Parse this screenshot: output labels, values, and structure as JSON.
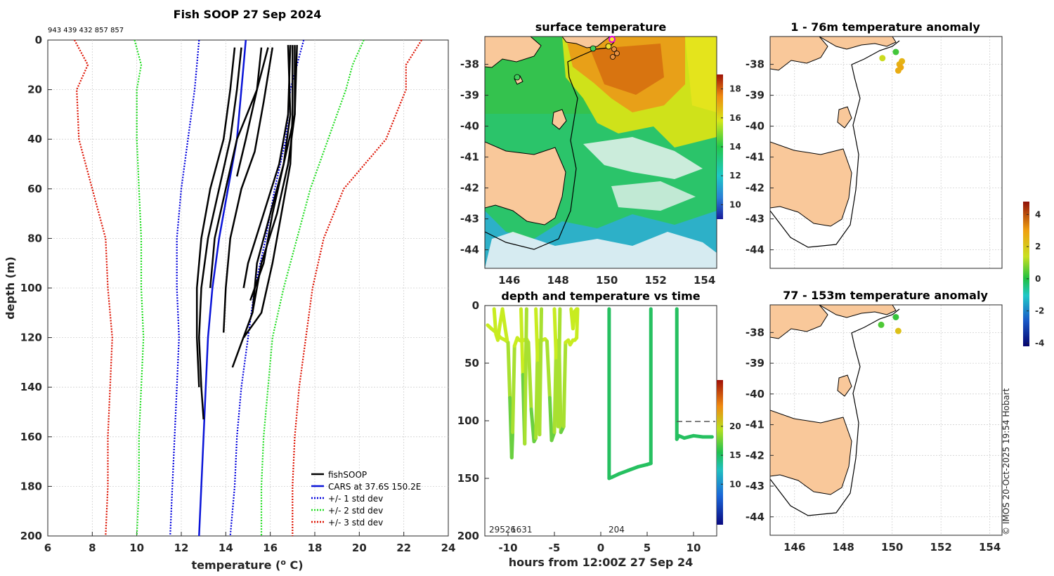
{
  "copyright": "© IMOS 20-Oct-2025 19:54 Hobart",
  "colors": {
    "fishsoop": "#000000",
    "cars": "#0a14d8",
    "std1": "#0000dd",
    "std2": "#22dd22",
    "std3": "#dd1100",
    "land": "#f9c89a",
    "highlight": "#e000e0"
  },
  "chart_data": [
    {
      "id": "profile",
      "type": "line",
      "title": "Fish SOOP 27 Sep 2024",
      "top_label": "943 439 432 857 857",
      "xlabel": "temperature (",
      "xlabel_sup": "o",
      "xlabel_tail": " C)",
      "ylabel": "depth (m)",
      "xlim": [
        6,
        24
      ],
      "ylim": [
        200,
        0
      ],
      "xticks": [
        "6",
        "8",
        "10",
        "12",
        "14",
        "16",
        "18",
        "20",
        "22",
        "24"
      ],
      "yticks": [
        "0",
        "20",
        "40",
        "60",
        "80",
        "100",
        "120",
        "140",
        "160",
        "180",
        "200"
      ],
      "legend": {
        "position": "bottom-right",
        "entries": [
          "fishSOOP",
          "CARS at 37.6S 150.2E",
          "+/- 1 std dev",
          "+/- 2 std dev",
          "+/- 3 std dev"
        ]
      },
      "depth": [
        0,
        10,
        20,
        40,
        60,
        80,
        100,
        120,
        140,
        160,
        180,
        200
      ],
      "series": [
        {
          "name": "CARS at 37.6S 150.2E",
          "temp": [
            14.9,
            14.8,
            14.7,
            14.5,
            14.1,
            13.7,
            13.4,
            13.2,
            13.1,
            13.0,
            12.9,
            12.8
          ]
        },
        {
          "name": "-1 std",
          "temp": [
            12.8,
            12.7,
            12.6,
            12.3,
            12.0,
            11.8,
            11.8,
            11.9,
            11.8,
            11.7,
            11.6,
            11.5
          ]
        },
        {
          "name": "+1 std",
          "temp": [
            17.5,
            17.2,
            16.9,
            16.7,
            16.2,
            15.8,
            15.3,
            15.0,
            14.7,
            14.5,
            14.4,
            14.2
          ]
        },
        {
          "name": "-2 std",
          "temp": [
            9.9,
            10.2,
            10.0,
            10.0,
            10.1,
            10.2,
            10.2,
            10.3,
            10.2,
            10.1,
            10.1,
            10.0
          ]
        },
        {
          "name": "+2 std",
          "temp": [
            20.2,
            19.7,
            19.4,
            18.6,
            17.8,
            17.2,
            16.6,
            16.1,
            15.9,
            15.7,
            15.6,
            15.6
          ]
        },
        {
          "name": "-3 std",
          "temp": [
            7.2,
            7.8,
            7.3,
            7.4,
            8.0,
            8.6,
            8.7,
            8.9,
            8.8,
            8.7,
            8.7,
            8.6
          ]
        },
        {
          "name": "+3 std",
          "temp": [
            22.8,
            22.1,
            22.1,
            21.2,
            19.3,
            18.4,
            17.9,
            17.6,
            17.3,
            17.1,
            17.0,
            17.0
          ]
        }
      ],
      "profiles": [
        {
          "d": [
            3,
            20,
            40,
            60,
            80,
            100,
            120,
            140,
            153
          ],
          "t": [
            14.7,
            14.5,
            14.2,
            13.7,
            13.2,
            12.9,
            12.8,
            12.9,
            13.0
          ]
        },
        {
          "d": [
            3,
            20,
            40,
            60,
            80,
            100,
            120,
            140
          ],
          "t": [
            14.4,
            14.2,
            13.9,
            13.3,
            12.9,
            12.7,
            12.7,
            12.8
          ]
        },
        {
          "d": [
            3,
            20,
            40,
            60,
            80,
            100
          ],
          "t": [
            15.6,
            15.4,
            14.5,
            14.0,
            13.5,
            13.3
          ]
        },
        {
          "d": [
            3,
            20,
            40,
            55
          ],
          "t": [
            15.9,
            15.4,
            14.9,
            14.5
          ]
        },
        {
          "d": [
            3,
            25,
            45,
            60,
            80,
            100,
            118
          ],
          "t": [
            16.1,
            15.7,
            15.3,
            14.7,
            14.2,
            14.0,
            13.9
          ]
        },
        {
          "d": [
            2,
            30,
            50,
            70,
            90,
            110,
            132
          ],
          "t": [
            17.1,
            17.1,
            16.8,
            16.3,
            15.6,
            15.2,
            14.3
          ]
        },
        {
          "d": [
            2,
            30,
            50,
            70,
            90,
            110,
            120
          ],
          "t": [
            17.0,
            17.0,
            16.9,
            16.5,
            16.1,
            15.6,
            14.8
          ]
        },
        {
          "d": [
            2,
            30,
            50,
            70,
            90,
            105
          ],
          "t": [
            16.8,
            16.9,
            16.6,
            16.1,
            15.7,
            15.1
          ]
        },
        {
          "d": [
            2,
            30,
            50,
            70,
            90,
            110
          ],
          "t": [
            17.2,
            17.1,
            16.6,
            16.0,
            15.4,
            15.2
          ]
        },
        {
          "d": [
            2,
            30,
            50,
            70,
            90,
            100
          ],
          "t": [
            16.9,
            16.8,
            16.4,
            15.7,
            15.0,
            14.8
          ]
        }
      ]
    },
    {
      "id": "sst",
      "type": "heatmap",
      "title": "surface temperature",
      "xticks": [
        "146",
        "148",
        "150",
        "152",
        "154"
      ],
      "yticks": [
        "-38",
        "-39",
        "-40",
        "-41",
        "-42",
        "-43",
        "-44"
      ],
      "xlim": [
        145,
        154.5
      ],
      "ylim": [
        -44.6,
        -37.1
      ],
      "colorbar": {
        "ticks": [
          "10",
          "12",
          "14",
          "16",
          "18"
        ],
        "range": [
          9,
          19
        ]
      }
    },
    {
      "id": "anom_shallow",
      "type": "scatter",
      "title": "1 - 76m temperature anomaly",
      "yticks": [
        "-38",
        "-39",
        "-40",
        "-41",
        "-42",
        "-43",
        "-44"
      ],
      "xlim": [
        145,
        154.5
      ],
      "ylim": [
        -44.6,
        -37.1
      ],
      "points": [
        {
          "lon": 149.6,
          "lat": -37.8,
          "anom": 1.5
        },
        {
          "lon": 150.15,
          "lat": -37.6,
          "anom": 0.3
        },
        {
          "lon": 150.4,
          "lat": -37.9,
          "anom": 2.5
        },
        {
          "lon": 150.3,
          "lat": -38.0,
          "anom": 2.6
        },
        {
          "lon": 150.35,
          "lat": -38.1,
          "anom": 2.8
        },
        {
          "lon": 150.25,
          "lat": -38.2,
          "anom": 2.7
        }
      ]
    },
    {
      "id": "anom_deep",
      "type": "scatter",
      "title": "77 - 153m temperature anomaly",
      "xticks": [
        "146",
        "148",
        "150",
        "152",
        "154"
      ],
      "yticks": [
        "-38",
        "-39",
        "-40",
        "-41",
        "-42",
        "-43",
        "-44"
      ],
      "xlim": [
        145,
        154.5
      ],
      "ylim": [
        -44.6,
        -37.1
      ],
      "points": [
        {
          "lon": 149.55,
          "lat": -37.75,
          "anom": 0.4
        },
        {
          "lon": 150.15,
          "lat": -37.5,
          "anom": 0.2
        },
        {
          "lon": 150.25,
          "lat": -37.95,
          "anom": 2.2
        }
      ]
    },
    {
      "id": "anom_colorbar",
      "type": "heatmap",
      "ticks": [
        "4",
        "2",
        "0",
        "-2",
        "-4"
      ],
      "range": [
        -4.2,
        4.8
      ]
    },
    {
      "id": "timeseries",
      "type": "scatter",
      "title": "depth and temperature vs time",
      "xlabel": "hours from 12:00Z 27 Sep 24",
      "xlim": [
        -12.5,
        12.5
      ],
      "ylim": [
        200,
        0
      ],
      "xticks": [
        "-10",
        "-5",
        "0",
        "5",
        "10"
      ],
      "yticks": [
        "0",
        "50",
        "100",
        "150",
        "200"
      ],
      "annotations": [
        "29526",
        "1631",
        "204"
      ],
      "colorbar": {
        "ticks": [
          "10",
          "15",
          "20"
        ],
        "range": [
          3,
          28
        ]
      },
      "reference_depth": 100,
      "tracks": [
        {
          "t": [
            -12.2,
            -11.8,
            -11.2,
            -10.8,
            -10.3,
            -10.0,
            -9.8,
            -9.6,
            -9.5,
            -9.3,
            -9.0,
            -8.8,
            -8.5,
            -8.3,
            -8.0,
            -7.8,
            -7.5,
            -7.2,
            -7.0,
            -6.8,
            -6.5,
            -6.3,
            -6.0,
            -5.8,
            -5.5,
            -5.3,
            -5.0,
            -4.8,
            -4.5,
            -4.3,
            -4.0,
            -3.8,
            -3.5,
            -3.3,
            -3.0,
            -2.8,
            -2.6,
            -2.5
          ],
          "d": [
            17,
            20,
            24,
            28,
            30,
            32,
            80,
            132,
            110,
            35,
            28,
            30,
            31,
            30,
            29,
            32,
            90,
            118,
            115,
            30,
            31,
            30,
            29,
            31,
            80,
            117,
            110,
            31,
            30,
            110,
            105,
            32,
            30,
            34,
            30,
            30,
            28,
            3
          ]
        },
        {
          "t": [
            -11.5,
            -11.3,
            -11.1,
            -10.9,
            -10.6,
            -10.3,
            -10.1
          ],
          "d": [
            3,
            25,
            30,
            18,
            3,
            20,
            30
          ]
        },
        {
          "t": [
            -8.6,
            -8.4,
            -8.2,
            -8.0
          ],
          "d": [
            3,
            60,
            120,
            3
          ]
        },
        {
          "t": [
            -7.0,
            -6.8,
            -6.6,
            -6.4
          ],
          "d": [
            3,
            50,
            112,
            3
          ]
        },
        {
          "t": [
            -5.0,
            -4.8,
            -4.6,
            -4.4
          ],
          "d": [
            3,
            48,
            105,
            3
          ]
        },
        {
          "t": [
            -3.2,
            -3.0,
            -2.8,
            -2.6
          ],
          "d": [
            3,
            20,
            5,
            3
          ]
        },
        {
          "t": [
            0.9,
            0.9,
            1.2,
            2.0,
            3.0,
            4.0,
            5.0,
            5.4,
            5.4
          ],
          "d": [
            3,
            150,
            149,
            146,
            143,
            140,
            138,
            137,
            3
          ]
        },
        {
          "t": [
            8.2,
            8.2,
            8.4,
            9.0,
            10.0,
            11.0,
            12.0
          ],
          "d": [
            3,
            116,
            113,
            115,
            113,
            114,
            114
          ]
        }
      ]
    }
  ]
}
